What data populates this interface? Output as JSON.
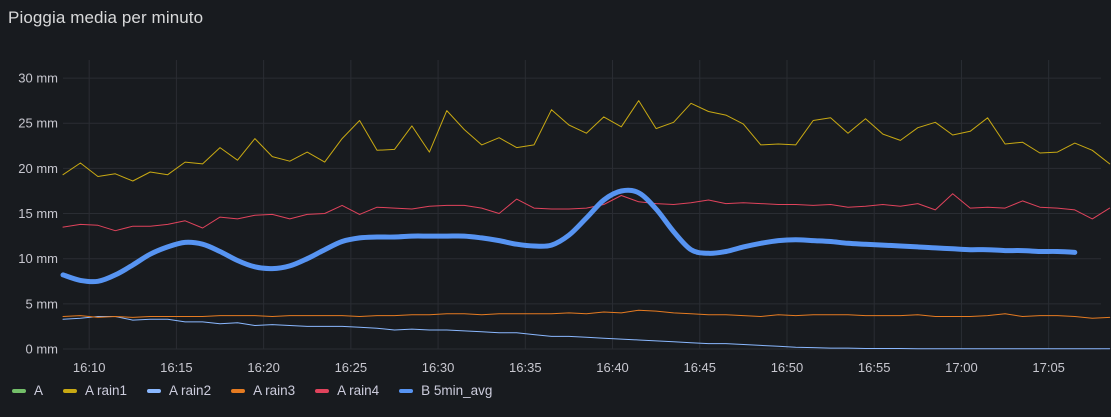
{
  "panel": {
    "title": "Pioggia media per minuto"
  },
  "chart_data": {
    "type": "line",
    "title": "Pioggia media per minuto",
    "xlabel": "",
    "ylabel": "",
    "ylim": [
      0,
      32
    ],
    "y_ticks": [
      {
        "value": 0,
        "label": "0 mm"
      },
      {
        "value": 5,
        "label": "5 mm"
      },
      {
        "value": 10,
        "label": "10 mm"
      },
      {
        "value": 15,
        "label": "15 mm"
      },
      {
        "value": 20,
        "label": "20 mm"
      },
      {
        "value": 25,
        "label": "25 mm"
      },
      {
        "value": 30,
        "label": "30 mm"
      }
    ],
    "xlim": [
      8.5,
      68
    ],
    "x_ticks": [
      {
        "value": 10,
        "label": "16:10"
      },
      {
        "value": 15,
        "label": "16:15"
      },
      {
        "value": 20,
        "label": "16:20"
      },
      {
        "value": 25,
        "label": "16:25"
      },
      {
        "value": 30,
        "label": "16:30"
      },
      {
        "value": 35,
        "label": "16:35"
      },
      {
        "value": 40,
        "label": "16:40"
      },
      {
        "value": 45,
        "label": "16:45"
      },
      {
        "value": 50,
        "label": "16:50"
      },
      {
        "value": 55,
        "label": "16:55"
      },
      {
        "value": 60,
        "label": "17:00"
      },
      {
        "value": 65,
        "label": "17:05"
      }
    ],
    "x_note": "x values are minutes past 16:00",
    "series": [
      {
        "name": "A",
        "color": "#73bf69",
        "width": 1,
        "smooth": false,
        "x_start": 8.5,
        "values": []
      },
      {
        "name": "A rain1",
        "color": "#c8a913",
        "width": 1,
        "smooth": false,
        "x_start": 8.5,
        "values": [
          19.3,
          20.6,
          19.1,
          19.4,
          18.6,
          19.6,
          19.3,
          20.7,
          20.5,
          22.3,
          20.9,
          23.3,
          21.3,
          20.8,
          21.8,
          20.7,
          23.3,
          25.3,
          22.0,
          22.1,
          24.7,
          21.8,
          26.4,
          24.3,
          22.6,
          23.4,
          22.3,
          22.6,
          26.5,
          24.8,
          23.9,
          25.7,
          24.6,
          27.5,
          24.4,
          25.1,
          27.2,
          26.3,
          25.9,
          24.9,
          22.6,
          22.7,
          22.6,
          25.3,
          25.6,
          23.9,
          25.5,
          23.8,
          23.1,
          24.5,
          25.1,
          23.7,
          24.1,
          25.6,
          22.7,
          22.9,
          21.7,
          21.8,
          22.8,
          22.0,
          20.5
        ]
      },
      {
        "name": "A rain2",
        "color": "#8ab8ff",
        "width": 1,
        "smooth": false,
        "x_start": 8.5,
        "values": [
          3.3,
          3.4,
          3.6,
          3.6,
          3.2,
          3.3,
          3.3,
          3.0,
          3.0,
          2.8,
          2.9,
          2.6,
          2.7,
          2.6,
          2.5,
          2.5,
          2.5,
          2.4,
          2.3,
          2.1,
          2.2,
          2.1,
          2.1,
          2.0,
          1.9,
          1.8,
          1.8,
          1.6,
          1.4,
          1.4,
          1.3,
          1.2,
          1.1,
          1.0,
          0.9,
          0.8,
          0.7,
          0.6,
          0.6,
          0.5,
          0.4,
          0.3,
          0.2,
          0.15,
          0.1,
          0.1,
          0.05,
          0.05,
          0.05,
          0.03,
          0.03,
          0.02,
          0.02,
          0.02,
          0.02,
          0.02,
          0.02,
          0.02,
          0.02,
          0.02,
          0.02
        ]
      },
      {
        "name": "A rain3",
        "color": "#e57b21",
        "width": 1,
        "smooth": false,
        "x_start": 8.5,
        "values": [
          3.6,
          3.7,
          3.5,
          3.6,
          3.5,
          3.6,
          3.6,
          3.6,
          3.6,
          3.7,
          3.7,
          3.7,
          3.6,
          3.7,
          3.7,
          3.7,
          3.7,
          3.6,
          3.7,
          3.7,
          3.8,
          3.8,
          3.9,
          3.9,
          3.8,
          3.9,
          3.9,
          3.9,
          3.9,
          4.0,
          3.9,
          4.1,
          4.0,
          4.3,
          4.2,
          4.0,
          3.9,
          3.8,
          3.8,
          3.7,
          3.6,
          3.8,
          3.7,
          3.8,
          3.8,
          3.8,
          3.7,
          3.7,
          3.7,
          3.8,
          3.6,
          3.6,
          3.6,
          3.7,
          3.9,
          3.6,
          3.7,
          3.7,
          3.6,
          3.4,
          3.5
        ]
      },
      {
        "name": "A rain4",
        "color": "#e0435c",
        "width": 1,
        "smooth": false,
        "x_start": 8.5,
        "values": [
          13.5,
          13.8,
          13.7,
          13.1,
          13.6,
          13.6,
          13.8,
          14.2,
          13.4,
          14.6,
          14.4,
          14.8,
          14.9,
          14.4,
          14.9,
          15.0,
          15.9,
          14.9,
          15.7,
          15.6,
          15.5,
          15.8,
          15.9,
          15.9,
          15.6,
          15.0,
          16.6,
          15.6,
          15.5,
          15.5,
          15.6,
          16.0,
          17.0,
          16.3,
          16.1,
          16.0,
          16.2,
          16.5,
          16.1,
          16.2,
          16.1,
          16.0,
          16.0,
          15.9,
          16.0,
          15.7,
          15.8,
          16.0,
          15.8,
          16.1,
          15.4,
          17.2,
          15.6,
          15.7,
          15.6,
          16.4,
          15.7,
          15.6,
          15.4,
          14.4,
          15.6
        ]
      },
      {
        "name": "B 5min_avg",
        "color": "#5794f2",
        "width": 5,
        "smooth": true,
        "x_start": 8.5,
        "values": [
          8.2,
          7.6,
          7.5,
          8.2,
          9.3,
          10.5,
          11.3,
          11.8,
          11.6,
          10.8,
          9.8,
          9.1,
          8.9,
          9.2,
          10.0,
          11.0,
          11.9,
          12.3,
          12.4,
          12.4,
          12.5,
          12.5,
          12.5,
          12.5,
          12.3,
          12.0,
          11.6,
          11.4,
          11.5,
          12.6,
          14.5,
          16.5,
          17.5,
          17.3,
          15.5,
          13.0,
          11.0,
          10.6,
          10.8,
          11.3,
          11.7,
          12.0,
          12.1,
          12.0,
          11.9,
          11.7,
          11.6,
          11.5,
          11.4,
          11.3,
          11.2,
          11.1,
          11.0,
          11.0,
          10.9,
          10.9,
          10.8,
          10.8,
          10.7
        ]
      }
    ],
    "legend": [
      "A",
      "A rain1",
      "A rain2",
      "A rain3",
      "A rain4",
      "B 5min_avg"
    ]
  }
}
